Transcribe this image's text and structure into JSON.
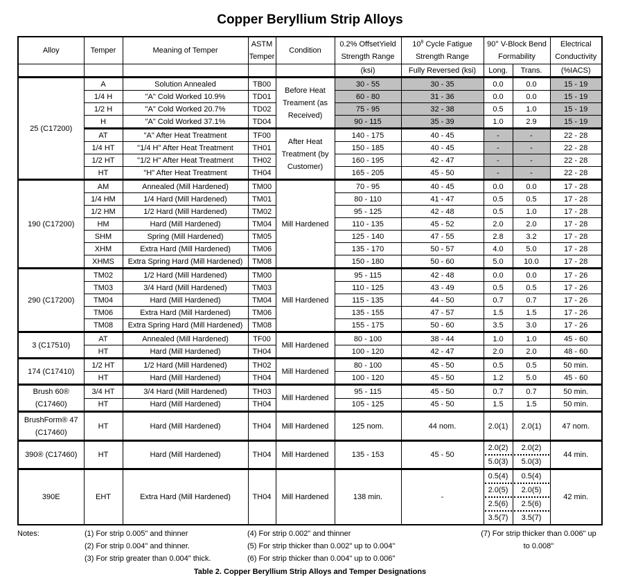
{
  "title": "Copper Beryllium Strip Alloys",
  "header": {
    "alloy": "Alloy",
    "temper": "Temper",
    "meaning": "Meaning of Temper",
    "astm": "ASTM Temper",
    "condition": "Condition",
    "yield": "0.2% OffsetYield Strength Range",
    "yield_unit": "(ksi)",
    "fatigue": "10^8 Cycle Fatigue Strength Range",
    "fatigue_unit": "Fully Reversed (ksi)",
    "bend": "90° V-Block Bend Formability",
    "bend_long": "Long.",
    "bend_trans": "Trans.",
    "elec": "Electrical Conductivity",
    "elec_unit": "(%IACS)"
  },
  "shade_color": "#c0c0c0",
  "groups": [
    {
      "alloy": "25 (C17200)",
      "rows": [
        {
          "temper": "A",
          "meaning": "Solution Annealed",
          "astm": "TB00",
          "condition": "Before Heat Treament (as Received)",
          "condSpan": 4,
          "yield": "30 - 55",
          "fatigue": "30 - 35",
          "long": [
            "0.0"
          ],
          "trans": [
            "0.0"
          ],
          "elec": "15 - 19",
          "shaded": [
            "yield",
            "fatigue",
            "elec"
          ]
        },
        {
          "temper": "1/4 H",
          "meaning": "\"A\" Cold Worked 10.9%",
          "astm": "TD01",
          "yield": "60 - 80",
          "fatigue": "31 - 36",
          "long": [
            "0.0"
          ],
          "trans": [
            "0.0"
          ],
          "elec": "15 - 19",
          "shaded": [
            "yield",
            "fatigue",
            "elec"
          ]
        },
        {
          "temper": "1/2 H",
          "meaning": "\"A\" Cold Worked 20.7%",
          "astm": "TD02",
          "yield": "75 - 95",
          "fatigue": "32 - 38",
          "long": [
            "0.5"
          ],
          "trans": [
            "1.0"
          ],
          "elec": "15 - 19",
          "shaded": [
            "yield",
            "fatigue",
            "elec"
          ]
        },
        {
          "temper": "H",
          "meaning": "\"A\" Cold Worked 37.1%",
          "astm": "TD04",
          "yield": "90 - 115",
          "fatigue": "35 - 39",
          "long": [
            "1.0"
          ],
          "trans": [
            "2.9"
          ],
          "elec": "15 - 19",
          "shaded": [
            "yield",
            "fatigue",
            "elec"
          ]
        },
        {
          "temper": "AT",
          "meaning": "\"A\" After Heat Treatment",
          "astm": "TF00",
          "condition": "After Heat Treatment (by Customer)",
          "condSpan": 4,
          "yield": "140 - 175",
          "fatigue": "40 - 45",
          "long": [
            "-"
          ],
          "trans": [
            "-"
          ],
          "elec": "22 - 28",
          "shaded": [
            "long",
            "trans"
          ],
          "thick": true
        },
        {
          "temper": "1/4 HT",
          "meaning": "\"1/4 H\" After Heat Treatment",
          "astm": "TH01",
          "yield": "150 - 185",
          "fatigue": "40 - 45",
          "long": [
            "-"
          ],
          "trans": [
            "-"
          ],
          "elec": "22 - 28",
          "shaded": [
            "long",
            "trans"
          ]
        },
        {
          "temper": "1/2 HT",
          "meaning": "\"1/2 H\" After Heat Treatment",
          "astm": "TH02",
          "yield": "160 - 195",
          "fatigue": "42 - 47",
          "long": [
            "-"
          ],
          "trans": [
            "-"
          ],
          "elec": "22 - 28",
          "shaded": [
            "long",
            "trans"
          ]
        },
        {
          "temper": "HT",
          "meaning": "\"H\" After Heat Treatment",
          "astm": "TH04",
          "yield": "165 - 205",
          "fatigue": "45 - 50",
          "long": [
            "-"
          ],
          "trans": [
            "-"
          ],
          "elec": "22 - 28",
          "shaded": [
            "long",
            "trans"
          ]
        }
      ]
    },
    {
      "alloy": "190 (C17200)",
      "rows": [
        {
          "temper": "AM",
          "meaning": "Annealed (Mill Hardened)",
          "astm": "TM00",
          "condition": "Mill Hardened",
          "condSpan": 7,
          "yield": "70 - 95",
          "fatigue": "40 - 45",
          "long": [
            "0.0"
          ],
          "trans": [
            "0.0"
          ],
          "elec": "17 - 28"
        },
        {
          "temper": "1/4 HM",
          "meaning": "1/4 Hard (Mill Hardened)",
          "astm": "TM01",
          "yield": "80 - 110",
          "fatigue": "41 - 47",
          "long": [
            "0.5"
          ],
          "trans": [
            "0.5"
          ],
          "elec": "17 - 28"
        },
        {
          "temper": "1/2 HM",
          "meaning": "1/2 Hard (Mill Hardened)",
          "astm": "TM02",
          "yield": "95 - 125",
          "fatigue": "42 - 48",
          "long": [
            "0.5"
          ],
          "trans": [
            "1.0"
          ],
          "elec": "17 - 28"
        },
        {
          "temper": "HM",
          "meaning": "Hard (Mill Hardened)",
          "astm": "TM04",
          "yield": "110 - 135",
          "fatigue": "45 - 52",
          "long": [
            "2.0"
          ],
          "trans": [
            "2.0"
          ],
          "elec": "17 - 28"
        },
        {
          "temper": "SHM",
          "meaning": "Spring (Mill Hardened)",
          "astm": "TM05",
          "yield": "125 - 140",
          "fatigue": "47 - 55",
          "long": [
            "2.8"
          ],
          "trans": [
            "3.2"
          ],
          "elec": "17 - 28"
        },
        {
          "temper": "XHM",
          "meaning": "Extra Hard (Mill Hardened)",
          "astm": "TM06",
          "yield": "135 - 170",
          "fatigue": "50 - 57",
          "long": [
            "4.0"
          ],
          "trans": [
            "5.0"
          ],
          "elec": "17 - 28"
        },
        {
          "temper": "XHMS",
          "meaning": "Extra Spring Hard (Mill Hardened)",
          "astm": "TM08",
          "yield": "150 - 180",
          "fatigue": "50 - 60",
          "long": [
            "5.0"
          ],
          "trans": [
            "10.0"
          ],
          "elec": "17 - 28"
        }
      ]
    },
    {
      "alloy": "290 (C17200)",
      "rows": [
        {
          "temper": "TM02",
          "meaning": "1/2 Hard (Mill Hardened)",
          "astm": "TM00",
          "condition": "Mill Hardened",
          "condSpan": 5,
          "yield": "95 - 115",
          "fatigue": "42 - 48",
          "long": [
            "0.0"
          ],
          "trans": [
            "0.0"
          ],
          "elec": "17 - 26"
        },
        {
          "temper": "TM03",
          "meaning": "3/4 Hard (Mill Hardened)",
          "astm": "TM03",
          "yield": "110 - 125",
          "fatigue": "43 - 49",
          "long": [
            "0.5"
          ],
          "trans": [
            "0.5"
          ],
          "elec": "17 - 26"
        },
        {
          "temper": "TM04",
          "meaning": "Hard (Mill Hardened)",
          "astm": "TM04",
          "yield": "115 - 135",
          "fatigue": "44 - 50",
          "long": [
            "0.7"
          ],
          "trans": [
            "0.7"
          ],
          "elec": "17 - 26"
        },
        {
          "temper": "TM06",
          "meaning": "Extra Hard (Mill Hardened)",
          "astm": "TM06",
          "yield": "135 - 155",
          "fatigue": "47 - 57",
          "long": [
            "1.5"
          ],
          "trans": [
            "1.5"
          ],
          "elec": "17 - 26"
        },
        {
          "temper": "TM08",
          "meaning": "Extra Spring Hard (Mill Hardened)",
          "astm": "TM08",
          "yield": "155 - 175",
          "fatigue": "50 - 60",
          "long": [
            "3.5"
          ],
          "trans": [
            "3.0"
          ],
          "elec": "17 - 26"
        }
      ]
    },
    {
      "alloy": "3 (C17510)",
      "rows": [
        {
          "temper": "AT",
          "meaning": "Annealed (Mill Hardened)",
          "astm": "TF00",
          "condition": "Mill Hardened",
          "condSpan": 2,
          "yield": "80 - 100",
          "fatigue": "38 - 44",
          "long": [
            "1.0"
          ],
          "trans": [
            "1.0"
          ],
          "elec": "45 - 60"
        },
        {
          "temper": "HT",
          "meaning": "Hard (Mill Hardened)",
          "astm": "TH04",
          "yield": "100 - 120",
          "fatigue": "42 - 47",
          "long": [
            "2.0"
          ],
          "trans": [
            "2.0"
          ],
          "elec": "48 - 60"
        }
      ]
    },
    {
      "alloy": "174 (C17410)",
      "rows": [
        {
          "temper": "1/2 HT",
          "meaning": "1/2 Hard (Mill Hardened)",
          "astm": "TH02",
          "condition": "Mill Hardened",
          "condSpan": 2,
          "yield": "80 - 100",
          "fatigue": "45 - 50",
          "long": [
            "0.5"
          ],
          "trans": [
            "0.5"
          ],
          "elec": "50 min."
        },
        {
          "temper": "HT",
          "meaning": "Hard (Mill Hardened)",
          "astm": "TH04",
          "yield": "100 - 120",
          "fatigue": "45 - 50",
          "long": [
            "1.2"
          ],
          "trans": [
            "5.0"
          ],
          "elec": "45 - 60"
        }
      ]
    },
    {
      "alloy": "Brush 60® (C17460)",
      "rows": [
        {
          "temper": "3/4 HT",
          "meaning": "3/4 Hard (Mill Hardened)",
          "astm": "TH03",
          "condition": "Mill Hardened",
          "condSpan": 2,
          "yield": "95 - 115",
          "fatigue": "45 - 50",
          "long": [
            "0.7"
          ],
          "trans": [
            "0.7"
          ],
          "elec": "50 min."
        },
        {
          "temper": "HT",
          "meaning": "Hard (Mill Hardened)",
          "astm": "TH04",
          "yield": "105 - 125",
          "fatigue": "45 - 50",
          "long": [
            "1.5"
          ],
          "trans": [
            "1.5"
          ],
          "elec": "50 min."
        }
      ]
    },
    {
      "alloy": "BrushForm® 47 (C17460)",
      "rows": [
        {
          "temper": "HT",
          "meaning": "Hard (Mill Hardened)",
          "astm": "TH04",
          "condition": "Mill Hardened",
          "condSpan": 1,
          "yield": "125 nom.",
          "fatigue": "44 nom.",
          "long": [
            "2.0(1)"
          ],
          "trans": [
            "2.0(1)"
          ],
          "elec": "47 nom.",
          "tall": 39
        }
      ]
    },
    {
      "alloy": "390® (C17460)",
      "rows": [
        {
          "temper": "HT",
          "meaning": "Hard (Mill Hardened)",
          "astm": "TH04",
          "condition": "Mill Hardened",
          "condSpan": 1,
          "yield": "135 - 153",
          "fatigue": "45 - 50",
          "long": [
            "2.0(2)",
            "5.0(3)"
          ],
          "trans": [
            "2.0(2)",
            "5.0(3)"
          ],
          "elec": "44 min."
        }
      ]
    },
    {
      "alloy": "390E",
      "rows": [
        {
          "temper": "EHT",
          "meaning": "Extra Hard (Mill Hardened)",
          "astm": "TH04",
          "condition": "Mill Hardened",
          "condSpan": 1,
          "yield": "138 min.",
          "fatigue": "-",
          "long": [
            "0.5(4)",
            "2.0(5)",
            "2.5(6)",
            "3.5(7)"
          ],
          "trans": [
            "0.5(4)",
            "2.0(5)",
            "2.5(6)",
            "3.5(7)"
          ],
          "elec": "42 min."
        }
      ]
    }
  ],
  "notes": {
    "label": "Notes:",
    "col1": [
      "(1)  For strip 0.005\" and thinner",
      "(2)  For strip 0.004\" and thinner.",
      "(3)  For strip greater than 0.004\" thick."
    ],
    "col2": [
      "(4)  For strip 0.002\" and thinner",
      "(5)  For strip thicker than 0.002\" up to 0.004\"",
      "(6)  For strip thicker than 0.004\" up to 0.006\""
    ],
    "col3": [
      "(7) For strip thicker than 0.006\" up",
      "to 0.008\""
    ]
  },
  "caption": "Table 2.  Copper Beryllium Strip Alloys and Temper Designations"
}
